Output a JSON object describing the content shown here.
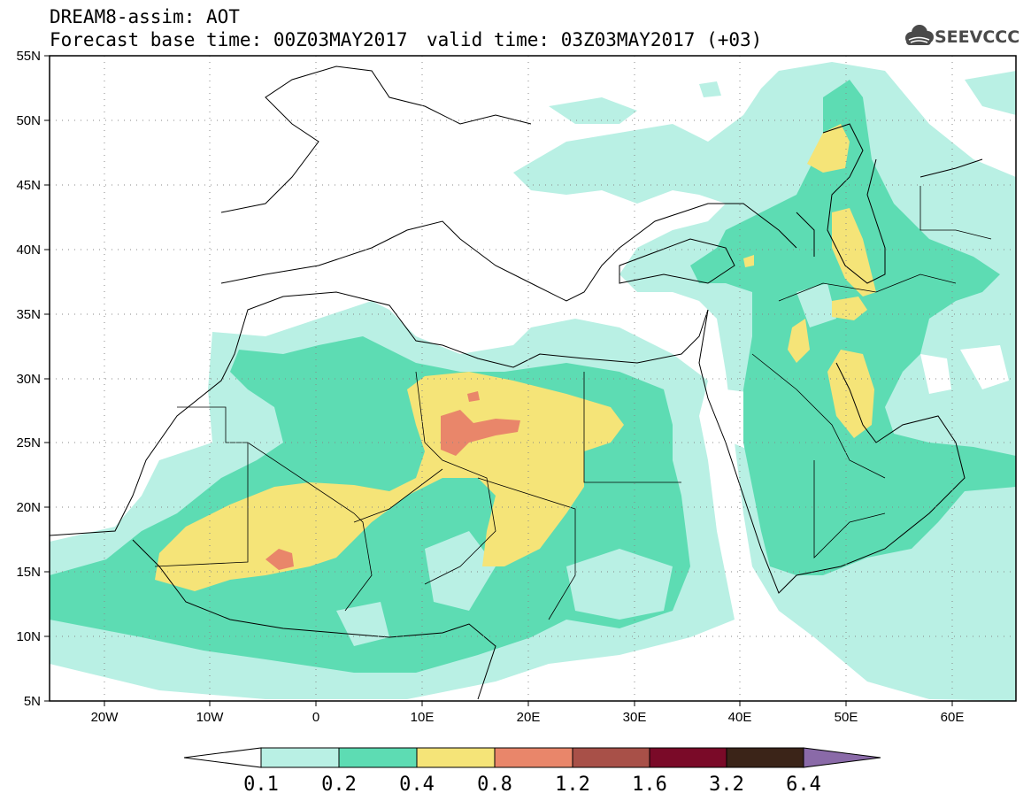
{
  "header": {
    "title": "DREAM8-assim: AOT",
    "base_time": "Forecast base time: 00Z03MAY2017",
    "valid_time": "valid time: 03Z03MAY2017 (+03)"
  },
  "logo": {
    "text": "SEEVCCC",
    "icon": "cloud-icon"
  },
  "map": {
    "lon_range": [
      -25,
      65
    ],
    "lat_range": [
      5,
      55
    ],
    "x_ticks": [
      "20W",
      "10W",
      "0",
      "10E",
      "20E",
      "30E",
      "40E",
      "50E",
      "60E"
    ],
    "y_ticks": [
      "55N",
      "50N",
      "45N",
      "40N",
      "35N",
      "30N",
      "25N",
      "20N",
      "15N",
      "10N",
      "5N"
    ],
    "grid": "dotted"
  },
  "colorbar": {
    "labels": [
      "0.1",
      "0.2",
      "0.4",
      "0.8",
      "1.2",
      "1.6",
      "3.2",
      "6.4"
    ],
    "colors": [
      "#ffffff",
      "#b9f0e4",
      "#5ddcb3",
      "#f5e478",
      "#e9866a",
      "#a85048",
      "#7a0a28",
      "#3b2418",
      "#8a6aa8"
    ]
  },
  "colors": {
    "level_01": "#b9f0e4",
    "level_02": "#5ddcb3",
    "level_04": "#f5e478",
    "level_08": "#e9866a"
  }
}
